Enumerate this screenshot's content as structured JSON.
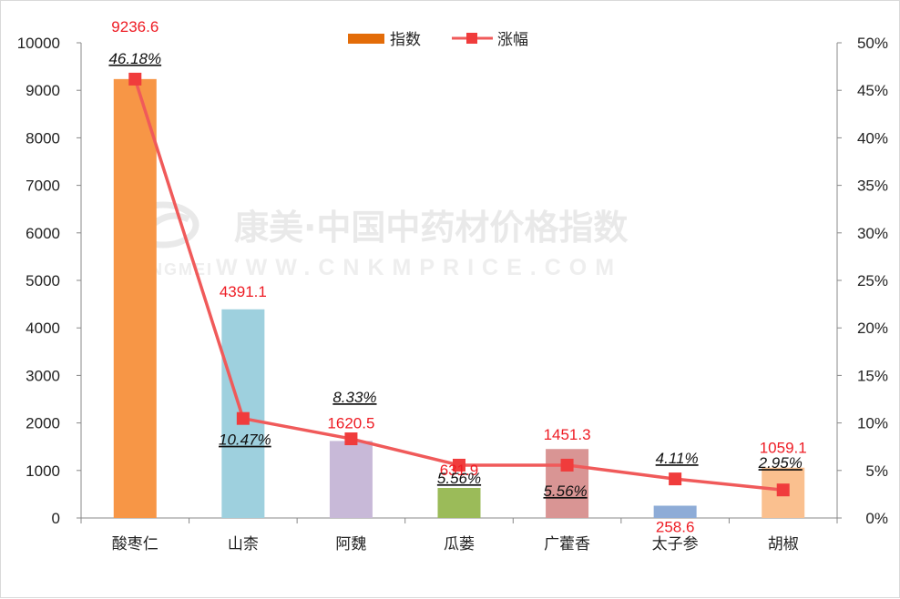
{
  "chart_data": {
    "type": "bar",
    "categories": [
      "酸枣仁",
      "山柰",
      "阿魏",
      "瓜蒌",
      "广藿香",
      "太子参",
      "胡椒"
    ],
    "series": [
      {
        "name": "指数",
        "type": "bar",
        "axis": "left",
        "values": [
          9236.6,
          4391.1,
          1620.5,
          631.9,
          1451.3,
          258.6,
          1059.1
        ],
        "labels": [
          "9236.6",
          "4391.1",
          "1620.5",
          "631.9",
          "1451.3",
          "258.6",
          "1059.1"
        ],
        "colors": [
          "#f79646",
          "#9ed0de",
          "#c8b9d8",
          "#9bbb59",
          "#d99594",
          "#8eacd7",
          "#fac08f"
        ]
      },
      {
        "name": "涨幅",
        "type": "line",
        "axis": "right",
        "values": [
          46.18,
          10.47,
          8.33,
          5.56,
          5.56,
          4.11,
          2.95
        ],
        "labels": [
          "46.18%",
          "10.47%",
          "8.33%",
          "5.56%",
          "5.56%",
          "4.11%",
          "2.95%"
        ],
        "color": "#f05a5a",
        "marker_color": "#f03c3c"
      }
    ],
    "y_left": {
      "min": 0,
      "max": 10000,
      "ticks": [
        "0",
        "1000",
        "2000",
        "3000",
        "4000",
        "5000",
        "6000",
        "7000",
        "8000",
        "9000",
        "10000"
      ]
    },
    "y_right": {
      "min": 0,
      "max": 50,
      "ticks": [
        "0%",
        "5%",
        "10%",
        "15%",
        "20%",
        "25%",
        "30%",
        "35%",
        "40%",
        "45%",
        "50%"
      ]
    },
    "grid": false,
    "legend": "top-center",
    "bar_label_color": "#ee1c24"
  },
  "watermark": {
    "line1": "康美·中国中药材价格指数",
    "brand": "KANGMEI",
    "line2": "WWW.CNKMPRICE.COM"
  }
}
